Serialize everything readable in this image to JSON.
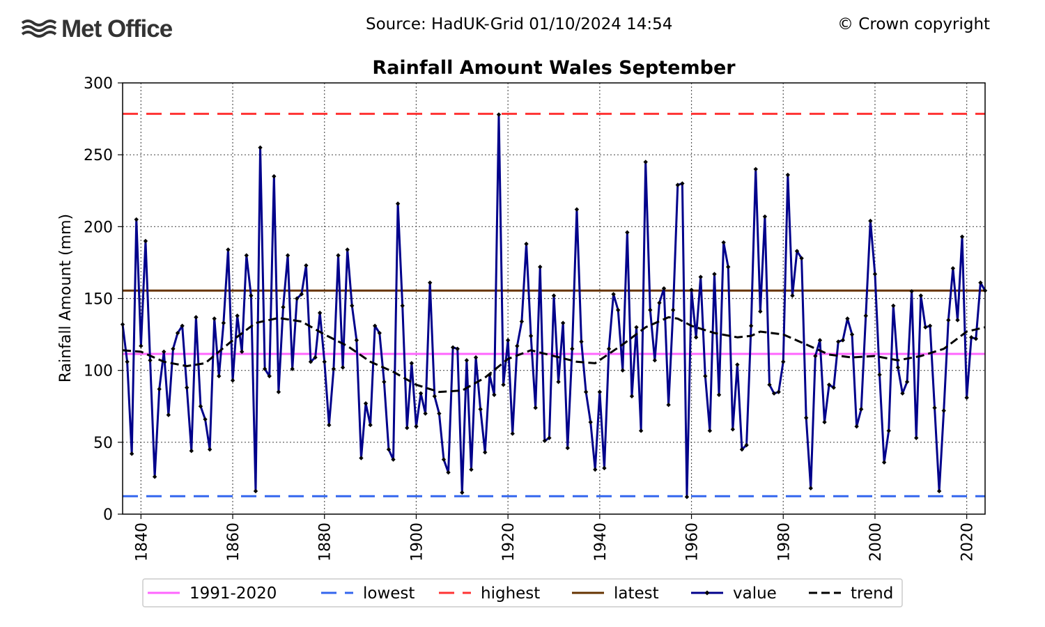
{
  "header": {
    "logo_text": "Met Office",
    "source": "Source: HadUK-Grid 01/10/2024 14:54",
    "copyright": "© Crown copyright"
  },
  "colors": {
    "value": "#00008b",
    "trend": "#000000",
    "baseline": "#ff66ff",
    "lowest": "#3366ee",
    "highest": "#ff3333",
    "latest": "#663300",
    "grid": "#555555"
  },
  "chart_data": {
    "type": "line",
    "title": "Rainfall Amount Wales September",
    "ylabel": "Rainfall Amount (mm)",
    "xlabel": "",
    "xlim": [
      1836,
      2024
    ],
    "ylim": [
      0,
      300
    ],
    "x_ticks": [
      1840,
      1860,
      1880,
      1900,
      1920,
      1940,
      1960,
      1980,
      2000,
      2020
    ],
    "y_ticks": [
      0,
      50,
      100,
      150,
      200,
      250,
      300
    ],
    "grid": true,
    "legend_placement": "bottom",
    "reference_lines": [
      {
        "key": "baseline",
        "name": "1991-2020",
        "value": 111.5,
        "style": "solid"
      },
      {
        "key": "lowest",
        "name": "lowest",
        "value": 12.5,
        "style": "dashed"
      },
      {
        "key": "highest",
        "name": "highest",
        "value": 278.5,
        "style": "dashed"
      },
      {
        "key": "latest",
        "name": "latest",
        "value": 155.5,
        "style": "solid"
      }
    ],
    "series": [
      {
        "key": "value",
        "name": "value",
        "start_year": 1836,
        "values": [
          132,
          106,
          42,
          205,
          117,
          190,
          107,
          26,
          87,
          113,
          69,
          115,
          126,
          131,
          88,
          44,
          137,
          75,
          66,
          45,
          136,
          96,
          133,
          184,
          93,
          138,
          113,
          180,
          152,
          16,
          255,
          101,
          96,
          235,
          85,
          144,
          180,
          101,
          150,
          153,
          173,
          106,
          109,
          140,
          106,
          62,
          101,
          180,
          102,
          184,
          145,
          121,
          39,
          77,
          62,
          131,
          126,
          92,
          45,
          38,
          216,
          145,
          60,
          105,
          61,
          84,
          70,
          161,
          82,
          70,
          38,
          29,
          116,
          115,
          15,
          107,
          31,
          109,
          73,
          43,
          97,
          83,
          278,
          90,
          121,
          56,
          117,
          134,
          188,
          124,
          74,
          172,
          51,
          53,
          152,
          92,
          133,
          46,
          115,
          212,
          120,
          85,
          64,
          31,
          85,
          32,
          115,
          153,
          142,
          100,
          196,
          82,
          130,
          58,
          245,
          142,
          107,
          147,
          157,
          76,
          142,
          229,
          230,
          12,
          156,
          123,
          165,
          96,
          58,
          167,
          83,
          189,
          172,
          59,
          104,
          45,
          48,
          131,
          240,
          141,
          207,
          90,
          84,
          85,
          106,
          236,
          152,
          183,
          178,
          67,
          18,
          110,
          121,
          64,
          90,
          88,
          120,
          121,
          136,
          125,
          61,
          73,
          138,
          204,
          167,
          97,
          36,
          58,
          145,
          102,
          84,
          92,
          155,
          53,
          152,
          130,
          131,
          74,
          16,
          72,
          135,
          171,
          135,
          193,
          81,
          123,
          122,
          161,
          155.5
        ]
      },
      {
        "key": "trend",
        "name": "trend",
        "style": "dashed",
        "points": [
          [
            1836,
            114
          ],
          [
            1840,
            113
          ],
          [
            1845,
            106
          ],
          [
            1850,
            103
          ],
          [
            1854,
            105
          ],
          [
            1860,
            121
          ],
          [
            1865,
            133
          ],
          [
            1870,
            136.5
          ],
          [
            1875,
            134
          ],
          [
            1880,
            125
          ],
          [
            1885,
            117
          ],
          [
            1890,
            106
          ],
          [
            1895,
            99
          ],
          [
            1900,
            90
          ],
          [
            1905,
            85
          ],
          [
            1910,
            86
          ],
          [
            1915,
            95
          ],
          [
            1920,
            108
          ],
          [
            1925,
            114
          ],
          [
            1930,
            110
          ],
          [
            1935,
            106
          ],
          [
            1939,
            105
          ],
          [
            1945,
            118
          ],
          [
            1950,
            130
          ],
          [
            1955,
            137
          ],
          [
            1957,
            136
          ],
          [
            1960,
            131
          ],
          [
            1965,
            126
          ],
          [
            1970,
            123
          ],
          [
            1973,
            124
          ],
          [
            1975,
            127
          ],
          [
            1980,
            125
          ],
          [
            1985,
            118
          ],
          [
            1990,
            111
          ],
          [
            1995,
            109
          ],
          [
            2000,
            110
          ],
          [
            2005,
            107
          ],
          [
            2010,
            110
          ],
          [
            2015,
            115
          ],
          [
            2020,
            127
          ],
          [
            2024,
            130
          ]
        ]
      }
    ],
    "legend": [
      {
        "key": "baseline",
        "label": "1991-2020",
        "style": "solid"
      },
      {
        "key": "lowest",
        "label": "lowest",
        "style": "dashed"
      },
      {
        "key": "highest",
        "label": "highest",
        "style": "dashed"
      },
      {
        "key": "latest",
        "label": "latest",
        "style": "solid"
      },
      {
        "key": "value",
        "label": "value",
        "style": "marker"
      },
      {
        "key": "trend",
        "label": "trend",
        "style": "dashed"
      }
    ]
  }
}
